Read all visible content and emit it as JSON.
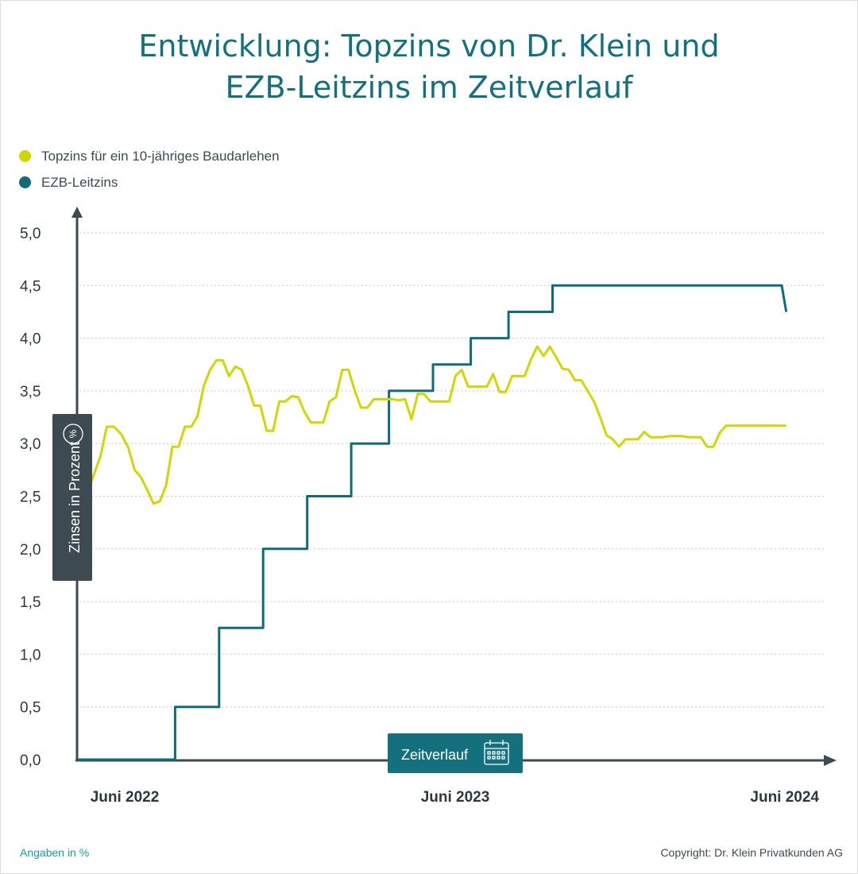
{
  "title_line1": "Entwicklung: Topzins von Dr. Klein und",
  "title_line2": "EZB-Leitzins im Zeitverlauf",
  "ylabel": "Zinsen in Prozent",
  "ylabel_icon": "%",
  "xlabel": "Zeitverlauf",
  "xlabel_icon": "calendar-icon",
  "footnote": "Angaben in %",
  "copyright": "Copyright: Dr. Klein Privatkunden AG",
  "colors": {
    "topzins": "#d2d600",
    "ezb": "#0d6b7b",
    "axis": "#3d4a52",
    "title": "#15707e"
  },
  "chart_data": {
    "type": "line",
    "ylim": [
      0,
      5
    ],
    "yticks": [
      "5,0",
      "4,5",
      "4,0",
      "3,5",
      "3,0",
      "2,5",
      "2,0",
      "1,5",
      "1,0",
      "0,5",
      "0,0"
    ],
    "xtick_labels": [
      "Juni 2022",
      "Juni 2023",
      "Juni 2024"
    ],
    "grid": true,
    "legend_position": "top-left",
    "series": [
      {
        "name": "Topzins für ein 10-jähriges Baudarlehen",
        "color": "#d2d600",
        "points": [
          [
            "2022-04-10",
            2.64
          ],
          [
            "2022-04-25",
            2.64
          ],
          [
            "2022-05-05",
            2.88
          ],
          [
            "2022-05-12",
            3.16
          ],
          [
            "2022-05-20",
            3.16
          ],
          [
            "2022-05-28",
            3.09
          ],
          [
            "2022-06-05",
            2.96
          ],
          [
            "2022-06-12",
            2.75
          ],
          [
            "2022-06-19",
            2.68
          ],
          [
            "2022-06-26",
            2.56
          ],
          [
            "2022-07-03",
            2.43
          ],
          [
            "2022-07-10",
            2.45
          ],
          [
            "2022-07-17",
            2.6
          ],
          [
            "2022-07-24",
            2.97
          ],
          [
            "2022-07-31",
            2.97
          ],
          [
            "2022-08-07",
            3.16
          ],
          [
            "2022-08-14",
            3.16
          ],
          [
            "2022-08-21",
            3.26
          ],
          [
            "2022-08-28",
            3.55
          ],
          [
            "2022-09-04",
            3.7
          ],
          [
            "2022-09-11",
            3.79
          ],
          [
            "2022-09-18",
            3.79
          ],
          [
            "2022-09-25",
            3.64
          ],
          [
            "2022-10-02",
            3.73
          ],
          [
            "2022-10-09",
            3.7
          ],
          [
            "2022-10-16",
            3.55
          ],
          [
            "2022-10-23",
            3.36
          ],
          [
            "2022-10-30",
            3.36
          ],
          [
            "2022-11-06",
            3.12
          ],
          [
            "2022-11-13",
            3.12
          ],
          [
            "2022-11-20",
            3.4
          ],
          [
            "2022-11-27",
            3.4
          ],
          [
            "2022-12-04",
            3.45
          ],
          [
            "2022-12-11",
            3.44
          ],
          [
            "2022-12-18",
            3.3
          ],
          [
            "2022-12-25",
            3.2
          ],
          [
            "2023-01-01",
            3.2
          ],
          [
            "2023-01-08",
            3.2
          ],
          [
            "2023-01-15",
            3.4
          ],
          [
            "2023-01-22",
            3.44
          ],
          [
            "2023-01-29",
            3.7
          ],
          [
            "2023-02-05",
            3.7
          ],
          [
            "2023-02-12",
            3.5
          ],
          [
            "2023-02-19",
            3.34
          ],
          [
            "2023-02-26",
            3.34
          ],
          [
            "2023-03-05",
            3.42
          ],
          [
            "2023-03-12",
            3.42
          ],
          [
            "2023-03-19",
            3.42
          ],
          [
            "2023-03-26",
            3.42
          ],
          [
            "2023-04-02",
            3.41
          ],
          [
            "2023-04-09",
            3.42
          ],
          [
            "2023-04-16",
            3.23
          ],
          [
            "2023-04-23",
            3.47
          ],
          [
            "2023-04-30",
            3.47
          ],
          [
            "2023-05-07",
            3.4
          ],
          [
            "2023-05-14",
            3.4
          ],
          [
            "2023-05-21",
            3.4
          ],
          [
            "2023-05-28",
            3.4
          ],
          [
            "2023-06-04",
            3.64
          ],
          [
            "2023-06-11",
            3.7
          ],
          [
            "2023-06-18",
            3.54
          ],
          [
            "2023-06-25",
            3.54
          ],
          [
            "2023-07-02",
            3.54
          ],
          [
            "2023-07-09",
            3.54
          ],
          [
            "2023-07-16",
            3.66
          ],
          [
            "2023-07-23",
            3.49
          ],
          [
            "2023-07-30",
            3.49
          ],
          [
            "2023-08-06",
            3.64
          ],
          [
            "2023-08-13",
            3.64
          ],
          [
            "2023-08-20",
            3.64
          ],
          [
            "2023-08-27",
            3.8
          ],
          [
            "2023-09-03",
            3.92
          ],
          [
            "2023-09-10",
            3.83
          ],
          [
            "2023-09-17",
            3.92
          ],
          [
            "2023-09-24",
            3.82
          ],
          [
            "2023-10-01",
            3.71
          ],
          [
            "2023-10-08",
            3.7
          ],
          [
            "2023-10-15",
            3.6
          ],
          [
            "2023-10-22",
            3.6
          ],
          [
            "2023-10-29",
            3.5
          ],
          [
            "2023-11-05",
            3.4
          ],
          [
            "2023-11-12",
            3.25
          ],
          [
            "2023-11-19",
            3.08
          ],
          [
            "2023-11-26",
            3.04
          ],
          [
            "2023-12-03",
            2.97
          ],
          [
            "2023-12-10",
            3.04
          ],
          [
            "2023-12-17",
            3.04
          ],
          [
            "2023-12-24",
            3.04
          ],
          [
            "2023-12-31",
            3.11
          ],
          [
            "2024-01-07",
            3.06
          ],
          [
            "2024-01-14",
            3.06
          ],
          [
            "2024-01-21",
            3.06
          ],
          [
            "2024-01-28",
            3.07
          ],
          [
            "2024-02-04",
            3.07
          ],
          [
            "2024-02-11",
            3.07
          ],
          [
            "2024-02-18",
            3.06
          ],
          [
            "2024-02-25",
            3.06
          ],
          [
            "2024-03-03",
            3.06
          ],
          [
            "2024-03-10",
            2.97
          ],
          [
            "2024-03-17",
            2.97
          ],
          [
            "2024-03-24",
            3.1
          ],
          [
            "2024-03-31",
            3.17
          ],
          [
            "2024-04-07",
            3.17
          ],
          [
            "2024-04-14",
            3.17
          ],
          [
            "2024-04-21",
            3.17
          ],
          [
            "2024-04-28",
            3.17
          ],
          [
            "2024-05-05",
            3.17
          ],
          [
            "2024-05-12",
            3.17
          ],
          [
            "2024-05-19",
            3.17
          ],
          [
            "2024-05-26",
            3.17
          ],
          [
            "2024-06-02",
            3.17
          ],
          [
            "2024-06-06",
            3.17
          ]
        ]
      },
      {
        "name": "EZB-Leitzins",
        "color": "#0d6b7b",
        "points": [
          [
            "2022-04-10",
            0.0
          ],
          [
            "2022-07-27",
            0.0
          ],
          [
            "2022-07-27",
            0.5
          ],
          [
            "2022-09-14",
            0.5
          ],
          [
            "2022-09-14",
            1.25
          ],
          [
            "2022-11-02",
            1.25
          ],
          [
            "2022-11-02",
            2.0
          ],
          [
            "2022-12-21",
            2.0
          ],
          [
            "2022-12-21",
            2.5
          ],
          [
            "2023-02-08",
            2.5
          ],
          [
            "2023-02-08",
            3.0
          ],
          [
            "2023-03-22",
            3.0
          ],
          [
            "2023-03-22",
            3.5
          ],
          [
            "2023-05-10",
            3.5
          ],
          [
            "2023-05-10",
            3.75
          ],
          [
            "2023-06-21",
            3.75
          ],
          [
            "2023-06-21",
            4.0
          ],
          [
            "2023-08-02",
            4.0
          ],
          [
            "2023-08-02",
            4.25
          ],
          [
            "2023-09-20",
            4.25
          ],
          [
            "2023-09-20",
            4.5
          ],
          [
            "2024-06-01",
            4.5
          ],
          [
            "2024-06-06",
            4.25
          ]
        ]
      }
    ]
  }
}
